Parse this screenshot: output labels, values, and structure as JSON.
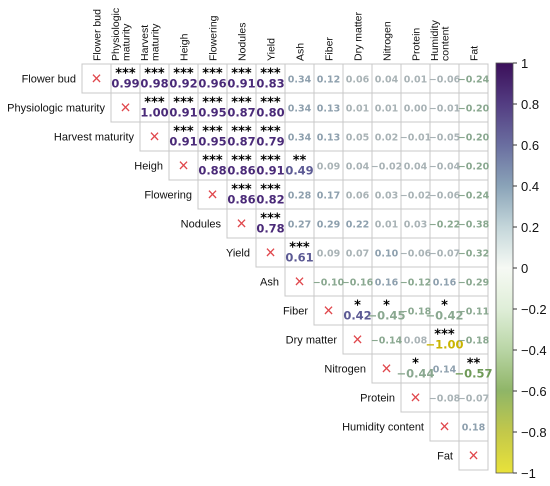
{
  "chart_data": {
    "type": "heatmap",
    "title": "",
    "variables": [
      "Flower bud",
      "Physiologic maturity",
      "Harvest maturity",
      "Heigh",
      "Flowering",
      "Nodules",
      "Yield",
      "Ash",
      "Fiber",
      "Dry matter",
      "Nitrogen",
      "Protein",
      "Humidity content",
      "Fat"
    ],
    "column_labels": [
      "Flower bud",
      "Physiologic maturity",
      "Harvest maturity",
      "Heigh",
      "Flowering",
      "Nodules",
      "Yield",
      "Ash",
      "Fiber",
      "Dry matter",
      "Nitrogen",
      "Protein",
      "Humidity content",
      "Fat"
    ],
    "triangle": "upper",
    "diagonal_marker": "×",
    "cells": [
      {
        "row": 0,
        "col": 1,
        "value": 0.99,
        "label": "0.99",
        "sig": "***"
      },
      {
        "row": 0,
        "col": 2,
        "value": 0.98,
        "label": "0.98",
        "sig": "***"
      },
      {
        "row": 0,
        "col": 3,
        "value": 0.92,
        "label": "0.92",
        "sig": "***"
      },
      {
        "row": 0,
        "col": 4,
        "value": 0.96,
        "label": "0.96",
        "sig": "***"
      },
      {
        "row": 0,
        "col": 5,
        "value": 0.91,
        "label": "0.91",
        "sig": "***"
      },
      {
        "row": 0,
        "col": 6,
        "value": 0.83,
        "label": "0.83",
        "sig": "***"
      },
      {
        "row": 0,
        "col": 7,
        "value": 0.34,
        "label": "0.34",
        "sig": ""
      },
      {
        "row": 0,
        "col": 8,
        "value": 0.12,
        "label": "0.12",
        "sig": ""
      },
      {
        "row": 0,
        "col": 9,
        "value": 0.06,
        "label": "0.06",
        "sig": ""
      },
      {
        "row": 0,
        "col": 10,
        "value": 0.04,
        "label": "0.04",
        "sig": ""
      },
      {
        "row": 0,
        "col": 11,
        "value": 0.01,
        "label": "0.01",
        "sig": ""
      },
      {
        "row": 0,
        "col": 12,
        "value": -0.06,
        "label": "−0.06",
        "sig": ""
      },
      {
        "row": 0,
        "col": 13,
        "value": -0.24,
        "label": "−0.24",
        "sig": ""
      },
      {
        "row": 1,
        "col": 2,
        "value": 1.0,
        "label": "1.00",
        "sig": "***"
      },
      {
        "row": 1,
        "col": 3,
        "value": 0.91,
        "label": "0.91",
        "sig": "***"
      },
      {
        "row": 1,
        "col": 4,
        "value": 0.95,
        "label": "0.95",
        "sig": "***"
      },
      {
        "row": 1,
        "col": 5,
        "value": 0.87,
        "label": "0.87",
        "sig": "***"
      },
      {
        "row": 1,
        "col": 6,
        "value": 0.8,
        "label": "0.80",
        "sig": "***"
      },
      {
        "row": 1,
        "col": 7,
        "value": 0.34,
        "label": "0.34",
        "sig": ""
      },
      {
        "row": 1,
        "col": 8,
        "value": 0.13,
        "label": "0.13",
        "sig": ""
      },
      {
        "row": 1,
        "col": 9,
        "value": 0.01,
        "label": "0.01",
        "sig": ""
      },
      {
        "row": 1,
        "col": 10,
        "value": 0.01,
        "label": "0.01",
        "sig": ""
      },
      {
        "row": 1,
        "col": 11,
        "value": 0.0,
        "label": "0.00",
        "sig": ""
      },
      {
        "row": 1,
        "col": 12,
        "value": -0.01,
        "label": "−0.01",
        "sig": ""
      },
      {
        "row": 1,
        "col": 13,
        "value": -0.2,
        "label": "−0.20",
        "sig": ""
      },
      {
        "row": 2,
        "col": 3,
        "value": 0.91,
        "label": "0.91",
        "sig": "***"
      },
      {
        "row": 2,
        "col": 4,
        "value": 0.95,
        "label": "0.95",
        "sig": "***"
      },
      {
        "row": 2,
        "col": 5,
        "value": 0.87,
        "label": "0.87",
        "sig": "***"
      },
      {
        "row": 2,
        "col": 6,
        "value": 0.79,
        "label": "0.79",
        "sig": "***"
      },
      {
        "row": 2,
        "col": 7,
        "value": 0.34,
        "label": "0.34",
        "sig": ""
      },
      {
        "row": 2,
        "col": 8,
        "value": 0.13,
        "label": "0.13",
        "sig": ""
      },
      {
        "row": 2,
        "col": 9,
        "value": 0.05,
        "label": "0.05",
        "sig": ""
      },
      {
        "row": 2,
        "col": 10,
        "value": 0.02,
        "label": "0.02",
        "sig": ""
      },
      {
        "row": 2,
        "col": 11,
        "value": -0.01,
        "label": "−0.01",
        "sig": ""
      },
      {
        "row": 2,
        "col": 12,
        "value": -0.05,
        "label": "−0.05",
        "sig": ""
      },
      {
        "row": 2,
        "col": 13,
        "value": -0.2,
        "label": "−0.20",
        "sig": ""
      },
      {
        "row": 3,
        "col": 4,
        "value": 0.88,
        "label": "0.88",
        "sig": "***"
      },
      {
        "row": 3,
        "col": 5,
        "value": 0.86,
        "label": "0.86",
        "sig": "***"
      },
      {
        "row": 3,
        "col": 6,
        "value": 0.91,
        "label": "0.91",
        "sig": "***"
      },
      {
        "row": 3,
        "col": 7,
        "value": 0.49,
        "label": "0.49",
        "sig": "**"
      },
      {
        "row": 3,
        "col": 8,
        "value": 0.09,
        "label": "0.09",
        "sig": ""
      },
      {
        "row": 3,
        "col": 9,
        "value": 0.04,
        "label": "0.04",
        "sig": ""
      },
      {
        "row": 3,
        "col": 10,
        "value": -0.02,
        "label": "−0.02",
        "sig": ""
      },
      {
        "row": 3,
        "col": 11,
        "value": 0.04,
        "label": "0.04",
        "sig": ""
      },
      {
        "row": 3,
        "col": 12,
        "value": -0.04,
        "label": "−0.04",
        "sig": ""
      },
      {
        "row": 3,
        "col": 13,
        "value": -0.2,
        "label": "−0.20",
        "sig": ""
      },
      {
        "row": 4,
        "col": 5,
        "value": 0.86,
        "label": "0.86",
        "sig": "***"
      },
      {
        "row": 4,
        "col": 6,
        "value": 0.82,
        "label": "0.82",
        "sig": "***"
      },
      {
        "row": 4,
        "col": 7,
        "value": 0.28,
        "label": "0.28",
        "sig": ""
      },
      {
        "row": 4,
        "col": 8,
        "value": 0.17,
        "label": "0.17",
        "sig": ""
      },
      {
        "row": 4,
        "col": 9,
        "value": 0.06,
        "label": "0.06",
        "sig": ""
      },
      {
        "row": 4,
        "col": 10,
        "value": 0.03,
        "label": "0.03",
        "sig": ""
      },
      {
        "row": 4,
        "col": 11,
        "value": -0.02,
        "label": "−0.02",
        "sig": ""
      },
      {
        "row": 4,
        "col": 12,
        "value": -0.06,
        "label": "−0.06",
        "sig": ""
      },
      {
        "row": 4,
        "col": 13,
        "value": -0.24,
        "label": "−0.24",
        "sig": ""
      },
      {
        "row": 5,
        "col": 6,
        "value": 0.78,
        "label": "0.78",
        "sig": "***"
      },
      {
        "row": 5,
        "col": 7,
        "value": 0.27,
        "label": "0.27",
        "sig": ""
      },
      {
        "row": 5,
        "col": 8,
        "value": 0.29,
        "label": "0.29",
        "sig": ""
      },
      {
        "row": 5,
        "col": 9,
        "value": 0.22,
        "label": "0.22",
        "sig": ""
      },
      {
        "row": 5,
        "col": 10,
        "value": 0.01,
        "label": "0.01",
        "sig": ""
      },
      {
        "row": 5,
        "col": 11,
        "value": 0.03,
        "label": "0.03",
        "sig": ""
      },
      {
        "row": 5,
        "col": 12,
        "value": -0.22,
        "label": "−0.22",
        "sig": ""
      },
      {
        "row": 5,
        "col": 13,
        "value": -0.38,
        "label": "−0.38",
        "sig": ""
      },
      {
        "row": 6,
        "col": 7,
        "value": 0.61,
        "label": "0.61",
        "sig": "***"
      },
      {
        "row": 6,
        "col": 8,
        "value": 0.09,
        "label": "0.09",
        "sig": ""
      },
      {
        "row": 6,
        "col": 9,
        "value": 0.07,
        "label": "0.07",
        "sig": ""
      },
      {
        "row": 6,
        "col": 10,
        "value": 0.1,
        "label": "0.10",
        "sig": ""
      },
      {
        "row": 6,
        "col": 11,
        "value": -0.06,
        "label": "−0.06",
        "sig": ""
      },
      {
        "row": 6,
        "col": 12,
        "value": -0.07,
        "label": "−0.07",
        "sig": ""
      },
      {
        "row": 6,
        "col": 13,
        "value": -0.32,
        "label": "−0.32",
        "sig": ""
      },
      {
        "row": 7,
        "col": 8,
        "value": -0.1,
        "label": "−0.10",
        "sig": ""
      },
      {
        "row": 7,
        "col": 9,
        "value": -0.16,
        "label": "−0.16",
        "sig": ""
      },
      {
        "row": 7,
        "col": 10,
        "value": 0.16,
        "label": "0.16",
        "sig": ""
      },
      {
        "row": 7,
        "col": 11,
        "value": -0.12,
        "label": "−0.12",
        "sig": ""
      },
      {
        "row": 7,
        "col": 12,
        "value": 0.16,
        "label": "0.16",
        "sig": ""
      },
      {
        "row": 7,
        "col": 13,
        "value": -0.29,
        "label": "−0.29",
        "sig": ""
      },
      {
        "row": 8,
        "col": 9,
        "value": 0.42,
        "label": "0.42",
        "sig": "*"
      },
      {
        "row": 8,
        "col": 10,
        "value": -0.45,
        "label": "−0.45",
        "sig": "*"
      },
      {
        "row": 8,
        "col": 11,
        "value": -0.18,
        "label": "−0.18",
        "sig": ""
      },
      {
        "row": 8,
        "col": 12,
        "value": -0.42,
        "label": "−0.42",
        "sig": "*"
      },
      {
        "row": 8,
        "col": 13,
        "value": -0.11,
        "label": "−0.11",
        "sig": ""
      },
      {
        "row": 9,
        "col": 10,
        "value": -0.14,
        "label": "−0.14",
        "sig": ""
      },
      {
        "row": 9,
        "col": 11,
        "value": 0.08,
        "label": "0.08",
        "sig": ""
      },
      {
        "row": 9,
        "col": 12,
        "value": -1.0,
        "label": "−1.00",
        "sig": "***"
      },
      {
        "row": 9,
        "col": 13,
        "value": -0.18,
        "label": "−0.18",
        "sig": ""
      },
      {
        "row": 10,
        "col": 11,
        "value": -0.44,
        "label": "−0.44",
        "sig": "*"
      },
      {
        "row": 10,
        "col": 12,
        "value": 0.14,
        "label": "0.14",
        "sig": ""
      },
      {
        "row": 10,
        "col": 13,
        "value": -0.57,
        "label": "−0.57",
        "sig": "**"
      },
      {
        "row": 11,
        "col": 12,
        "value": -0.08,
        "label": "−0.08",
        "sig": ""
      },
      {
        "row": 11,
        "col": 13,
        "value": -0.07,
        "label": "−0.07",
        "sig": ""
      },
      {
        "row": 12,
        "col": 13,
        "value": 0.18,
        "label": "0.18",
        "sig": ""
      }
    ],
    "colorbar": {
      "range": [
        -1,
        1
      ],
      "ticks": [
        "1",
        "0.8",
        "0.6",
        "0.4",
        "0.2",
        "0",
        "−0.2",
        "−0.4",
        "−0.6",
        "−0.8",
        "−1"
      ],
      "tick_values": [
        1,
        0.8,
        0.6,
        0.4,
        0.2,
        0,
        -0.2,
        -0.4,
        -0.6,
        -0.8,
        -1
      ],
      "colors": {
        "positive": "#3b0f5a",
        "zero": "#f6f9f4",
        "negative": "#e9e23a"
      }
    }
  }
}
